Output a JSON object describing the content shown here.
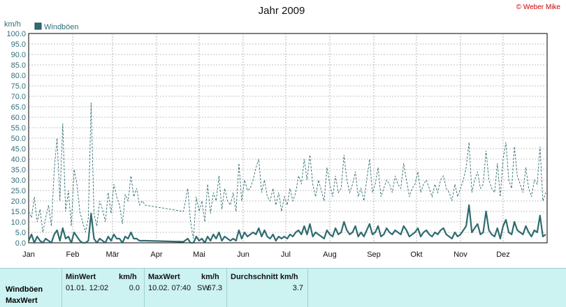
{
  "chart_data": {
    "type": "line",
    "title": "Jahr 2009",
    "copyright": "© Weber Mike",
    "ylabel": "km/h",
    "ylim": [
      0,
      100
    ],
    "y_tick_labels": [
      "0.0",
      "5.0",
      "10.0",
      "15.0",
      "20.0",
      "25.0",
      "30.0",
      "35.0",
      "40.0",
      "45.0",
      "50.0",
      "55.0",
      "60.0",
      "65.0",
      "70.0",
      "75.0",
      "80.0",
      "85.0",
      "90.0",
      "95.0",
      "100.0"
    ],
    "x_tick_labels": [
      "Jan",
      "Feb",
      "Mär",
      "Apr",
      "Mai",
      "Jun",
      "Jul",
      "Aug",
      "Sep",
      "Okt",
      "Nov",
      "Dez"
    ],
    "xlim_day": [
      1,
      366
    ],
    "grid": true,
    "legend": {
      "position": "top-left",
      "entries": [
        "Windböen"
      ]
    },
    "colors": {
      "series": "#2f6b6f",
      "grid": "#888888",
      "text_axis": "#2e6e7a"
    },
    "series": [
      {
        "name": "Windböen",
        "style": "dashed",
        "x": [
          1,
          3,
          5,
          7,
          9,
          11,
          13,
          15,
          17,
          19,
          21,
          23,
          25,
          27,
          29,
          31,
          33,
          35,
          37,
          39,
          41,
          43,
          45,
          47,
          49,
          51,
          53,
          55,
          57,
          59,
          61,
          63,
          65,
          67,
          69,
          71,
          73,
          75,
          77,
          79,
          81,
          83,
          110,
          113,
          115,
          117,
          119,
          121,
          123,
          125,
          127,
          129,
          131,
          133,
          135,
          137,
          139,
          141,
          143,
          145,
          147,
          149,
          151,
          153,
          155,
          157,
          159,
          161,
          163,
          165,
          167,
          169,
          171,
          173,
          175,
          177,
          179,
          181,
          183,
          185,
          187,
          189,
          191,
          193,
          195,
          197,
          199,
          201,
          203,
          205,
          207,
          209,
          211,
          213,
          215,
          217,
          219,
          221,
          223,
          225,
          227,
          229,
          231,
          233,
          235,
          237,
          239,
          241,
          243,
          245,
          247,
          249,
          251,
          253,
          255,
          257,
          259,
          261,
          263,
          265,
          267,
          269,
          271,
          273,
          275,
          277,
          279,
          281,
          283,
          285,
          287,
          289,
          291,
          293,
          295,
          297,
          299,
          301,
          303,
          305,
          307,
          309,
          311,
          313,
          315,
          317,
          319,
          321,
          323,
          325,
          327,
          329,
          331,
          333,
          335,
          337,
          339,
          341,
          343,
          345,
          347,
          349,
          351,
          353,
          355,
          357,
          359,
          361,
          363,
          365
        ],
        "y": [
          15,
          12,
          22,
          10,
          16,
          5,
          12,
          18,
          8,
          35,
          50,
          20,
          57,
          15,
          25,
          8,
          35,
          28,
          15,
          10,
          5,
          12,
          67,
          14,
          8,
          20,
          16,
          10,
          24,
          14,
          28,
          22,
          18,
          9,
          23,
          20,
          32,
          22,
          26,
          18,
          20,
          18,
          15,
          26,
          10,
          2,
          22,
          15,
          20,
          10,
          28,
          14,
          24,
          20,
          32,
          16,
          26,
          20,
          18,
          24,
          15,
          38,
          20,
          30,
          25,
          26,
          30,
          36,
          40,
          24,
          30,
          22,
          20,
          26,
          18,
          24,
          15,
          22,
          18,
          26,
          20,
          24,
          32,
          28,
          40,
          30,
          42,
          28,
          22,
          30,
          25,
          20,
          36,
          28,
          22,
          32,
          24,
          26,
          42,
          30,
          24,
          28,
          34,
          22,
          26,
          20,
          30,
          40,
          24,
          28,
          36,
          22,
          26,
          30,
          28,
          24,
          32,
          28,
          26,
          38,
          30,
          22,
          26,
          28,
          34,
          24,
          28,
          30,
          26,
          22,
          28,
          24,
          30,
          32,
          26,
          24,
          20,
          28,
          22,
          26,
          30,
          36,
          48,
          24,
          30,
          34,
          26,
          28,
          44,
          30,
          26,
          24,
          38,
          22,
          40,
          48,
          30,
          26,
          46,
          32,
          28,
          24,
          36,
          26,
          22,
          30,
          28,
          46,
          20,
          24
        ]
      },
      {
        "name": "MaxWert",
        "style": "solid",
        "x": [
          1,
          3,
          5,
          7,
          9,
          11,
          13,
          15,
          17,
          19,
          21,
          23,
          25,
          27,
          29,
          31,
          33,
          35,
          37,
          39,
          41,
          43,
          45,
          47,
          49,
          51,
          53,
          55,
          57,
          59,
          61,
          63,
          65,
          67,
          69,
          71,
          73,
          75,
          77,
          79,
          81,
          83,
          110,
          113,
          115,
          117,
          119,
          121,
          123,
          125,
          127,
          129,
          131,
          133,
          135,
          137,
          139,
          141,
          143,
          145,
          147,
          149,
          151,
          153,
          155,
          157,
          159,
          161,
          163,
          165,
          167,
          169,
          171,
          173,
          175,
          177,
          179,
          181,
          183,
          185,
          187,
          189,
          191,
          193,
          195,
          197,
          199,
          201,
          203,
          205,
          207,
          209,
          211,
          213,
          215,
          217,
          219,
          221,
          223,
          225,
          227,
          229,
          231,
          233,
          235,
          237,
          239,
          241,
          243,
          245,
          247,
          249,
          251,
          253,
          255,
          257,
          259,
          261,
          263,
          265,
          267,
          269,
          271,
          273,
          275,
          277,
          279,
          281,
          283,
          285,
          287,
          289,
          291,
          293,
          295,
          297,
          299,
          301,
          303,
          305,
          307,
          309,
          311,
          313,
          315,
          317,
          319,
          321,
          323,
          325,
          327,
          329,
          331,
          333,
          335,
          337,
          339,
          341,
          343,
          345,
          347,
          349,
          351,
          353,
          355,
          357,
          359,
          361,
          363,
          365
        ],
        "y": [
          1,
          4,
          0,
          3,
          1,
          0,
          2,
          1,
          0,
          4,
          6,
          1,
          7,
          2,
          3,
          0,
          5,
          3,
          1,
          0,
          0,
          1,
          14,
          2,
          0,
          2,
          1,
          0,
          3,
          1,
          4,
          2,
          2,
          0,
          3,
          2,
          5,
          2,
          2,
          1,
          1,
          1,
          0.5,
          2,
          0,
          0,
          3,
          1,
          2,
          0,
          3,
          1,
          4,
          2,
          5,
          1,
          3,
          2,
          1,
          2,
          1,
          6,
          2,
          5,
          3,
          4,
          5,
          4,
          7,
          3,
          6,
          3,
          2,
          4,
          1,
          3,
          2,
          3,
          2,
          4,
          3,
          5,
          6,
          4,
          8,
          4,
          9,
          3,
          5,
          4,
          3,
          2,
          6,
          4,
          3,
          7,
          4,
          5,
          10,
          6,
          4,
          5,
          8,
          3,
          5,
          3,
          6,
          9,
          4,
          5,
          8,
          3,
          4,
          7,
          5,
          4,
          6,
          5,
          4,
          8,
          6,
          3,
          4,
          5,
          7,
          3,
          5,
          6,
          4,
          3,
          5,
          4,
          6,
          7,
          4,
          3,
          2,
          5,
          3,
          4,
          6,
          8,
          18,
          5,
          7,
          9,
          4,
          5,
          15,
          6,
          4,
          3,
          7,
          2,
          8,
          11,
          5,
          4,
          10,
          6,
          5,
          4,
          8,
          5,
          3,
          6,
          5,
          13,
          3,
          4
        ]
      }
    ]
  },
  "stats": {
    "row_labels": [
      "Windböen",
      "MaxWert"
    ],
    "min": {
      "header": "MinWert",
      "unit": "km/h",
      "date_time": "01.01.  12:02",
      "value": "0.0"
    },
    "max": {
      "header": "MaxWert",
      "unit": "km/h",
      "date_time": "10.02.  07:40",
      "dir": "SW",
      "value": "67.3"
    },
    "avg": {
      "header": "Durchschnitt km/h",
      "value": "3.7"
    }
  }
}
